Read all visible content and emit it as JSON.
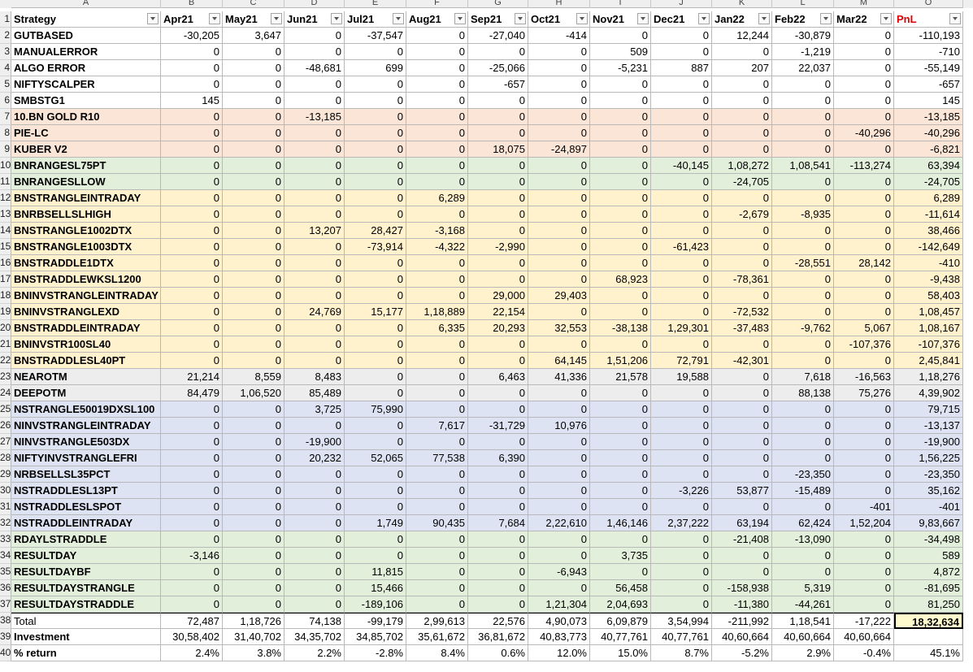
{
  "col_letters": [
    "A",
    "B",
    "C",
    "D",
    "E",
    "F",
    "G",
    "H",
    "I",
    "J",
    "K",
    "L",
    "M",
    "O"
  ],
  "headers": [
    "Strategy",
    "Apr21",
    "May21",
    "Jun21",
    "Jul21",
    "Aug21",
    "Sep21",
    "Oct21",
    "Nov21",
    "Dec21",
    "Jan22",
    "Feb22",
    "Mar22",
    "PnL"
  ],
  "colors": {
    "white": "#ffffff",
    "salmon": "#fbe5d6",
    "green": "#e2efda",
    "yellow": "#fff2cc",
    "grey": "#ededed",
    "blue": "#dde3f2",
    "total": "#fffacd"
  },
  "rows": [
    {
      "n": "2",
      "name": "GUTBASED",
      "vals": [
        "-30,205",
        "3,647",
        "0",
        "-37,547",
        "0",
        "-27,040",
        "-414",
        "0",
        "0",
        "12,244",
        "-30,879",
        "0",
        "-110,193"
      ],
      "color": "white"
    },
    {
      "n": "3",
      "name": "MANUALERROR",
      "vals": [
        "0",
        "0",
        "0",
        "0",
        "0",
        "0",
        "0",
        "509",
        "0",
        "0",
        "-1,219",
        "0",
        "-710"
      ],
      "color": "white"
    },
    {
      "n": "4",
      "name": "ALGO ERROR",
      "vals": [
        "0",
        "0",
        "-48,681",
        "699",
        "0",
        "-25,066",
        "0",
        "-5,231",
        "887",
        "207",
        "22,037",
        "0",
        "-55,149"
      ],
      "color": "white"
    },
    {
      "n": "5",
      "name": "NIFTYSCALPER",
      "vals": [
        "0",
        "0",
        "0",
        "0",
        "0",
        "-657",
        "0",
        "0",
        "0",
        "0",
        "0",
        "0",
        "-657"
      ],
      "color": "white"
    },
    {
      "n": "6",
      "name": "SMBSTG1",
      "vals": [
        "145",
        "0",
        "0",
        "0",
        "0",
        "0",
        "0",
        "0",
        "0",
        "0",
        "0",
        "0",
        "145"
      ],
      "color": "white"
    },
    {
      "n": "7",
      "name": "10.BN GOLD R10",
      "vals": [
        "0",
        "0",
        "-13,185",
        "0",
        "0",
        "0",
        "0",
        "0",
        "0",
        "0",
        "0",
        "0",
        "-13,185"
      ],
      "color": "salmon"
    },
    {
      "n": "8",
      "name": "PIE-LC",
      "vals": [
        "0",
        "0",
        "0",
        "0",
        "0",
        "0",
        "0",
        "0",
        "0",
        "0",
        "0",
        "-40,296",
        "-40,296"
      ],
      "color": "salmon"
    },
    {
      "n": "9",
      "name": "KUBER V2",
      "vals": [
        "0",
        "0",
        "0",
        "0",
        "0",
        "18,075",
        "-24,897",
        "0",
        "0",
        "0",
        "0",
        "0",
        "-6,821"
      ],
      "color": "salmon"
    },
    {
      "n": "10",
      "name": "BNRANGESL75PT",
      "vals": [
        "0",
        "0",
        "0",
        "0",
        "0",
        "0",
        "0",
        "0",
        "-40,145",
        "1,08,272",
        "1,08,541",
        "-113,274",
        "63,394"
      ],
      "color": "green"
    },
    {
      "n": "11",
      "name": "BNRANGESLLOW",
      "vals": [
        "0",
        "0",
        "0",
        "0",
        "0",
        "0",
        "0",
        "0",
        "0",
        "-24,705",
        "0",
        "0",
        "-24,705"
      ],
      "color": "green"
    },
    {
      "n": "12",
      "name": "BNSTRANGLEINTRADAY",
      "vals": [
        "0",
        "0",
        "0",
        "0",
        "6,289",
        "0",
        "0",
        "0",
        "0",
        "0",
        "0",
        "0",
        "6,289"
      ],
      "color": "yellow"
    },
    {
      "n": "13",
      "name": "BNRBSELLSLHIGH",
      "vals": [
        "0",
        "0",
        "0",
        "0",
        "0",
        "0",
        "0",
        "0",
        "0",
        "-2,679",
        "-8,935",
        "0",
        "-11,614"
      ],
      "color": "yellow"
    },
    {
      "n": "14",
      "name": "BNSTRANGLE1002DTX",
      "vals": [
        "0",
        "0",
        "13,207",
        "28,427",
        "-3,168",
        "0",
        "0",
        "0",
        "0",
        "0",
        "0",
        "0",
        "38,466"
      ],
      "color": "yellow"
    },
    {
      "n": "15",
      "name": "BNSTRANGLE1003DTX",
      "vals": [
        "0",
        "0",
        "0",
        "-73,914",
        "-4,322",
        "-2,990",
        "0",
        "0",
        "-61,423",
        "0",
        "0",
        "0",
        "-142,649"
      ],
      "color": "yellow"
    },
    {
      "n": "16",
      "name": "BNSTRADDLE1DTX",
      "vals": [
        "0",
        "0",
        "0",
        "0",
        "0",
        "0",
        "0",
        "0",
        "0",
        "0",
        "-28,551",
        "28,142",
        "-410"
      ],
      "color": "yellow"
    },
    {
      "n": "17",
      "name": "BNSTRADDLEWKSL1200",
      "vals": [
        "0",
        "0",
        "0",
        "0",
        "0",
        "0",
        "0",
        "68,923",
        "0",
        "-78,361",
        "0",
        "0",
        "-9,438"
      ],
      "color": "yellow"
    },
    {
      "n": "18",
      "name": "BNINVSTRANGLEINTRADAY",
      "vals": [
        "0",
        "0",
        "0",
        "0",
        "0",
        "29,000",
        "29,403",
        "0",
        "0",
        "0",
        "0",
        "0",
        "58,403"
      ],
      "color": "yellow"
    },
    {
      "n": "19",
      "name": "BNINVSTRANGLEXD",
      "vals": [
        "0",
        "0",
        "24,769",
        "15,177",
        "1,18,889",
        "22,154",
        "0",
        "0",
        "0",
        "-72,532",
        "0",
        "0",
        "1,08,457"
      ],
      "color": "yellow"
    },
    {
      "n": "20",
      "name": "BNSTRADDLEINTRADAY",
      "vals": [
        "0",
        "0",
        "0",
        "0",
        "6,335",
        "20,293",
        "32,553",
        "-38,138",
        "1,29,301",
        "-37,483",
        "-9,762",
        "5,067",
        "1,08,167"
      ],
      "color": "yellow"
    },
    {
      "n": "21",
      "name": "BNINVSTR100SL40",
      "vals": [
        "0",
        "0",
        "0",
        "0",
        "0",
        "0",
        "0",
        "0",
        "0",
        "0",
        "0",
        "-107,376",
        "-107,376"
      ],
      "color": "yellow"
    },
    {
      "n": "22",
      "name": "BNSTRADDLESL40PT",
      "vals": [
        "0",
        "0",
        "0",
        "0",
        "0",
        "0",
        "64,145",
        "1,51,206",
        "72,791",
        "-42,301",
        "0",
        "0",
        "2,45,841"
      ],
      "color": "yellow"
    },
    {
      "n": "23",
      "name": "NEAROTM",
      "vals": [
        "21,214",
        "8,559",
        "8,483",
        "0",
        "0",
        "6,463",
        "41,336",
        "21,578",
        "19,588",
        "0",
        "7,618",
        "-16,563",
        "1,18,276"
      ],
      "color": "grey"
    },
    {
      "n": "24",
      "name": "DEEPOTM",
      "vals": [
        "84,479",
        "1,06,520",
        "85,489",
        "0",
        "0",
        "0",
        "0",
        "0",
        "0",
        "0",
        "88,138",
        "75,276",
        "4,39,902"
      ],
      "color": "grey"
    },
    {
      "n": "25",
      "name": "NSTRANGLE50019DXSL100",
      "vals": [
        "0",
        "0",
        "3,725",
        "75,990",
        "0",
        "0",
        "0",
        "0",
        "0",
        "0",
        "0",
        "0",
        "79,715"
      ],
      "color": "blue"
    },
    {
      "n": "26",
      "name": "NINVSTRANGLEINTRADAY",
      "vals": [
        "0",
        "0",
        "0",
        "0",
        "7,617",
        "-31,729",
        "10,976",
        "0",
        "0",
        "0",
        "0",
        "0",
        "-13,137"
      ],
      "color": "blue"
    },
    {
      "n": "27",
      "name": "NINVSTRANGLE503DX",
      "vals": [
        "0",
        "0",
        "-19,900",
        "0",
        "0",
        "0",
        "0",
        "0",
        "0",
        "0",
        "0",
        "0",
        "-19,900"
      ],
      "color": "blue"
    },
    {
      "n": "28",
      "name": "NIFTYINVSTRANGLEFRI",
      "vals": [
        "0",
        "0",
        "20,232",
        "52,065",
        "77,538",
        "6,390",
        "0",
        "0",
        "0",
        "0",
        "0",
        "0",
        "1,56,225"
      ],
      "color": "blue"
    },
    {
      "n": "29",
      "name": "NRBSELLSL35PCT",
      "vals": [
        "0",
        "0",
        "0",
        "0",
        "0",
        "0",
        "0",
        "0",
        "0",
        "0",
        "-23,350",
        "0",
        "-23,350"
      ],
      "color": "blue"
    },
    {
      "n": "30",
      "name": "NSTRADDLESL13PT",
      "vals": [
        "0",
        "0",
        "0",
        "0",
        "0",
        "0",
        "0",
        "0",
        "-3,226",
        "53,877",
        "-15,489",
        "0",
        "35,162"
      ],
      "color": "blue"
    },
    {
      "n": "31",
      "name": "NSTRADDLESLSPOT",
      "vals": [
        "0",
        "0",
        "0",
        "0",
        "0",
        "0",
        "0",
        "0",
        "0",
        "0",
        "0",
        "-401",
        "-401"
      ],
      "color": "blue"
    },
    {
      "n": "32",
      "name": "NSTRADDLEINTRADAY",
      "vals": [
        "0",
        "0",
        "0",
        "1,749",
        "90,435",
        "7,684",
        "2,22,610",
        "1,46,146",
        "2,37,222",
        "63,194",
        "62,424",
        "1,52,204",
        "9,83,667"
      ],
      "color": "blue"
    },
    {
      "n": "33",
      "name": "RDAYLSTRADDLE",
      "vals": [
        "0",
        "0",
        "0",
        "0",
        "0",
        "0",
        "0",
        "0",
        "0",
        "-21,408",
        "-13,090",
        "0",
        "-34,498"
      ],
      "color": "green"
    },
    {
      "n": "34",
      "name": "RESULTDAY",
      "vals": [
        "-3,146",
        "0",
        "0",
        "0",
        "0",
        "0",
        "0",
        "3,735",
        "0",
        "0",
        "0",
        "0",
        "589"
      ],
      "color": "green"
    },
    {
      "n": "35",
      "name": "RESULTDAYBF",
      "vals": [
        "0",
        "0",
        "0",
        "11,815",
        "0",
        "0",
        "-6,943",
        "0",
        "0",
        "0",
        "0",
        "0",
        "4,872"
      ],
      "color": "green"
    },
    {
      "n": "36",
      "name": "RESULTDAYSTRANGLE",
      "vals": [
        "0",
        "0",
        "0",
        "15,466",
        "0",
        "0",
        "0",
        "56,458",
        "0",
        "-158,938",
        "5,319",
        "0",
        "-81,695"
      ],
      "color": "green"
    },
    {
      "n": "37",
      "name": "RESULTDAYSTRADDLE",
      "vals": [
        "0",
        "0",
        "0",
        "-189,106",
        "0",
        "0",
        "1,21,304",
        "2,04,693",
        "0",
        "-11,380",
        "-44,261",
        "0",
        "81,250"
      ],
      "color": "green"
    }
  ],
  "total": {
    "n": "38",
    "name": "Total",
    "vals": [
      "72,487",
      "1,18,726",
      "74,138",
      "-99,179",
      "2,99,613",
      "22,576",
      "4,90,073",
      "6,09,879",
      "3,54,994",
      "-211,992",
      "1,18,541",
      "-17,222",
      "18,32,634"
    ]
  },
  "investment": {
    "n": "39",
    "name": "Investment",
    "vals": [
      "30,58,402",
      "31,40,702",
      "34,35,702",
      "34,85,702",
      "35,61,672",
      "36,81,672",
      "40,83,773",
      "40,77,761",
      "40,77,761",
      "40,60,664",
      "40,60,664",
      "40,60,664",
      ""
    ]
  },
  "return": {
    "n": "40",
    "name": "% return",
    "vals": [
      "2.4%",
      "3.8%",
      "2.2%",
      "-2.8%",
      "8.4%",
      "0.6%",
      "12.0%",
      "15.0%",
      "8.7%",
      "-5.2%",
      "2.9%",
      "-0.4%",
      "45.1%"
    ]
  }
}
